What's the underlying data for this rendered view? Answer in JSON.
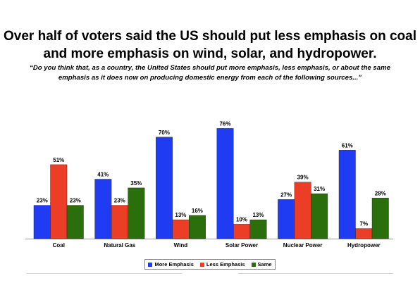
{
  "title": "Over half of voters said the US should put less emphasis on coal and more emphasis on wind, solar, and hydropower.",
  "subtitle": "“Do you think that, as a country, the United States should put more emphasis, less emphasis, or about the same emphasis as it does now on producing domestic energy from each of the following sources...”",
  "chart_data": {
    "type": "bar",
    "title": "Over half of voters said the US should put less emphasis on coal and more emphasis on wind, solar, and hydropower.",
    "subtitle": "“Do you think that, as a country, the United States should put more emphasis, less emphasis, or about the same emphasis as it does now on producing domestic energy from each of the following sources...”",
    "categories": [
      "Coal",
      "Natural Gas",
      "Wind",
      "Solar Power",
      "Nuclear Power",
      "Hydropower"
    ],
    "series": [
      {
        "name": "More Emphasis",
        "color": "#1f3cf2",
        "values": [
          23,
          41,
          70,
          76,
          27,
          61
        ]
      },
      {
        "name": "Less Emphasis",
        "color": "#ec3e26",
        "values": [
          51,
          23,
          13,
          10,
          39,
          7
        ]
      },
      {
        "name": "Same",
        "color": "#2b6e0c",
        "values": [
          23,
          35,
          16,
          13,
          31,
          28
        ]
      }
    ],
    "value_suffix": "%",
    "ylim": [
      0,
      76
    ],
    "xlabel": "",
    "ylabel": "",
    "grid": false,
    "legend_position": "bottom-center"
  }
}
